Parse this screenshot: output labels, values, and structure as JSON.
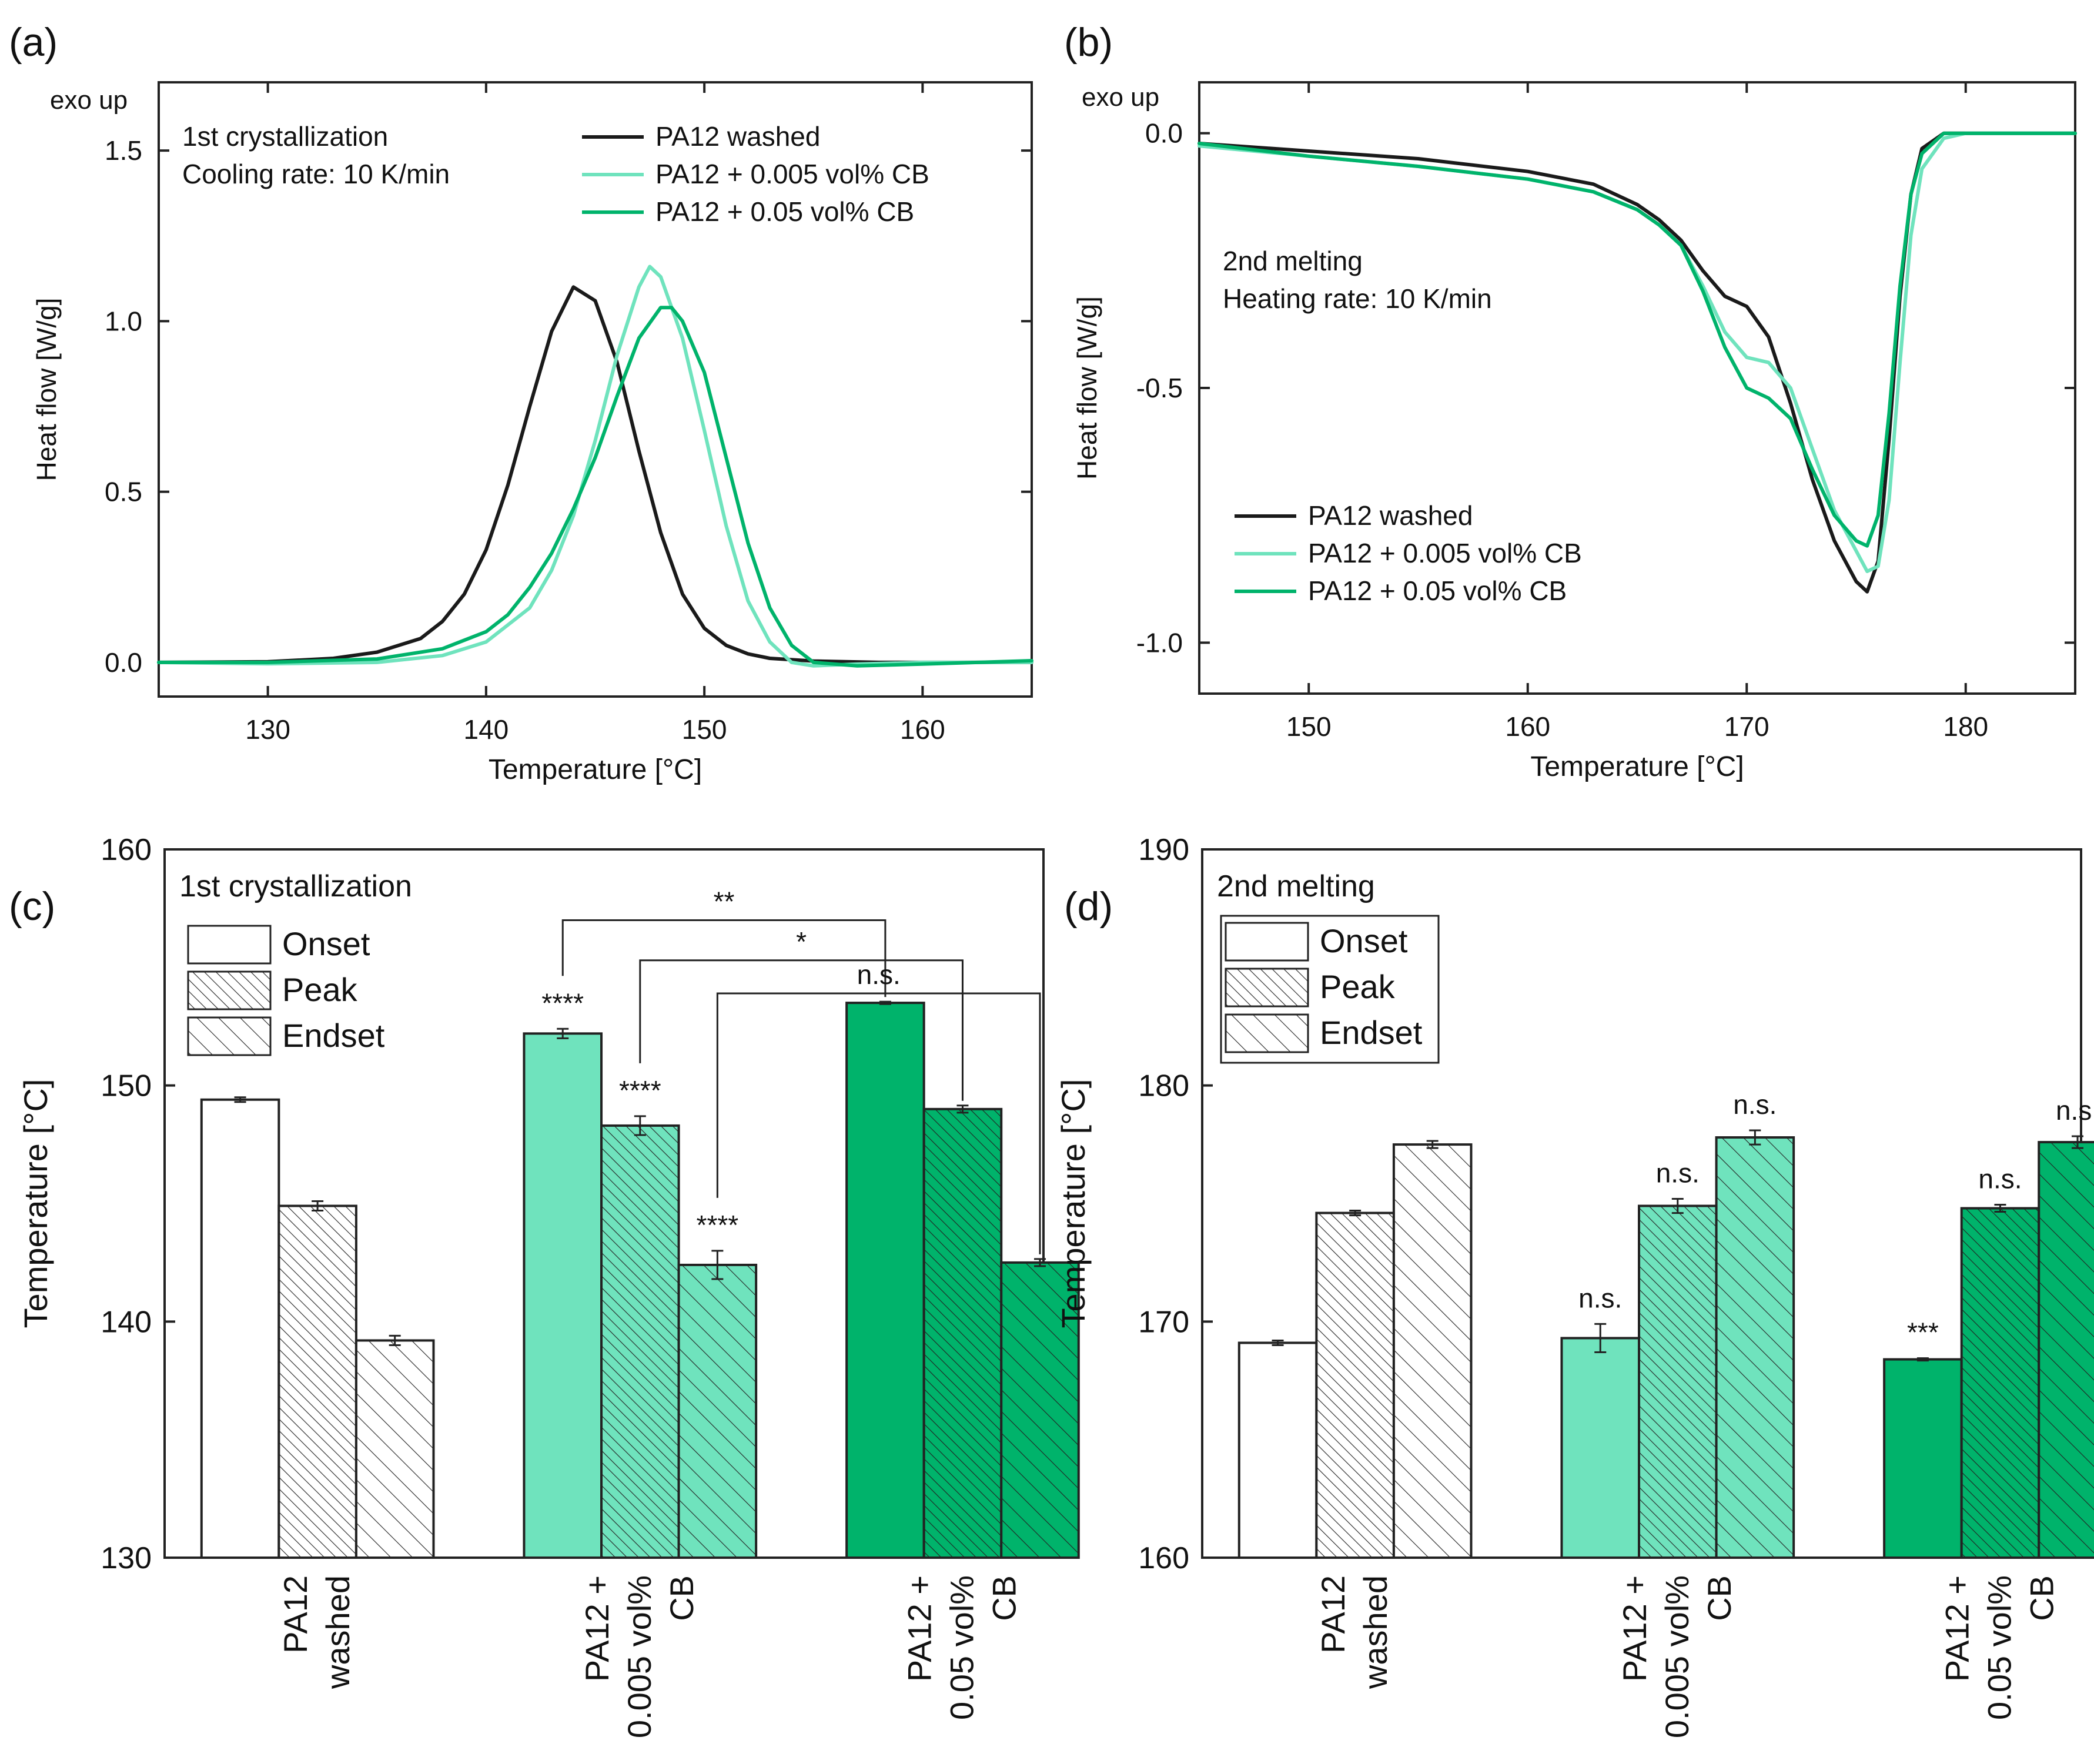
{
  "colors": {
    "washed": "#1a1a1a",
    "cb_low": "#6fe3bd",
    "cb_high": "#00b36b",
    "axis": "#222222",
    "bar_white": "#ffffff"
  },
  "chart_data": [
    {
      "id": "a",
      "type": "line",
      "panel_label": "(a)",
      "corner_label": "exo up",
      "annotation": [
        "1st crystallization",
        "Cooling rate: 10 K/min"
      ],
      "xlabel": "Temperature [°C]",
      "ylabel": "Heat flow [W/g]",
      "xlim": [
        125,
        165
      ],
      "ylim": [
        -0.1,
        1.7
      ],
      "xticks": [
        130,
        140,
        150,
        160
      ],
      "yticks": [
        0.0,
        0.5,
        1.0,
        1.5
      ],
      "ytick_labels": [
        "0.0",
        "0.5",
        "1.0",
        "1.5"
      ],
      "legend_position": "top-right",
      "series": [
        {
          "name": "PA12 washed",
          "color_key": "washed",
          "points": [
            [
              125,
              0.0
            ],
            [
              130,
              0.002
            ],
            [
              133,
              0.012
            ],
            [
              135,
              0.03
            ],
            [
              137,
              0.07
            ],
            [
              138,
              0.12
            ],
            [
              139,
              0.2
            ],
            [
              140,
              0.33
            ],
            [
              141,
              0.52
            ],
            [
              142,
              0.75
            ],
            [
              143,
              0.97
            ],
            [
              144,
              1.1
            ],
            [
              145,
              1.06
            ],
            [
              146,
              0.88
            ],
            [
              147,
              0.62
            ],
            [
              148,
              0.38
            ],
            [
              149,
              0.2
            ],
            [
              150,
              0.1
            ],
            [
              151,
              0.05
            ],
            [
              152,
              0.025
            ],
            [
              153,
              0.012
            ],
            [
              155,
              0.004
            ],
            [
              158,
              0.0
            ],
            [
              165,
              0.0
            ]
          ]
        },
        {
          "name": "PA12 + 0.005 vol% CB",
          "color_key": "cb_low",
          "points": [
            [
              125,
              0.0
            ],
            [
              130,
              -0.004
            ],
            [
              135,
              0.0
            ],
            [
              138,
              0.02
            ],
            [
              140,
              0.06
            ],
            [
              142,
              0.16
            ],
            [
              143,
              0.27
            ],
            [
              144,
              0.43
            ],
            [
              145,
              0.65
            ],
            [
              146,
              0.9
            ],
            [
              147,
              1.1
            ],
            [
              147.5,
              1.16
            ],
            [
              148,
              1.13
            ],
            [
              149,
              0.95
            ],
            [
              150,
              0.68
            ],
            [
              151,
              0.4
            ],
            [
              152,
              0.18
            ],
            [
              153,
              0.06
            ],
            [
              154,
              0.0
            ],
            [
              155,
              -0.01
            ],
            [
              157,
              -0.005
            ],
            [
              160,
              0.0
            ],
            [
              165,
              0.0
            ]
          ]
        },
        {
          "name": "PA12 + 0.05 vol% CB",
          "color_key": "cb_high",
          "points": [
            [
              125,
              0.0
            ],
            [
              130,
              0.0
            ],
            [
              135,
              0.01
            ],
            [
              138,
              0.04
            ],
            [
              140,
              0.09
            ],
            [
              141,
              0.14
            ],
            [
              142,
              0.22
            ],
            [
              143,
              0.32
            ],
            [
              144,
              0.45
            ],
            [
              145,
              0.6
            ],
            [
              146,
              0.78
            ],
            [
              147,
              0.95
            ],
            [
              148,
              1.04
            ],
            [
              148.5,
              1.04
            ],
            [
              149,
              1.0
            ],
            [
              150,
              0.85
            ],
            [
              151,
              0.6
            ],
            [
              152,
              0.35
            ],
            [
              153,
              0.16
            ],
            [
              154,
              0.05
            ],
            [
              155,
              0.0
            ],
            [
              157,
              -0.01
            ],
            [
              160,
              -0.005
            ],
            [
              165,
              0.005
            ]
          ]
        }
      ]
    },
    {
      "id": "b",
      "type": "line",
      "panel_label": "(b)",
      "corner_label": "exo up",
      "annotation": [
        "2nd melting",
        "Heating rate: 10 K/min"
      ],
      "xlabel": "Temperature [°C]",
      "ylabel": "Heat flow [W/g]",
      "xlim": [
        145,
        185
      ],
      "ylim": [
        -1.1,
        0.1
      ],
      "xticks": [
        150,
        160,
        170,
        180
      ],
      "yticks": [
        0.0,
        -0.5,
        -1.0
      ],
      "ytick_labels": [
        "0.0",
        "-0.5",
        "-1.0"
      ],
      "legend_position": "bottom-left",
      "series": [
        {
          "name": "PA12 washed",
          "color_key": "washed",
          "points": [
            [
              145,
              -0.02
            ],
            [
              150,
              -0.035
            ],
            [
              155,
              -0.05
            ],
            [
              160,
              -0.075
            ],
            [
              163,
              -0.1
            ],
            [
              165,
              -0.14
            ],
            [
              166,
              -0.17
            ],
            [
              167,
              -0.21
            ],
            [
              168,
              -0.27
            ],
            [
              169,
              -0.32
            ],
            [
              170,
              -0.34
            ],
            [
              171,
              -0.4
            ],
            [
              172,
              -0.53
            ],
            [
              173,
              -0.68
            ],
            [
              174,
              -0.8
            ],
            [
              175,
              -0.88
            ],
            [
              175.5,
              -0.9
            ],
            [
              176,
              -0.84
            ],
            [
              176.5,
              -0.6
            ],
            [
              177,
              -0.32
            ],
            [
              177.5,
              -0.12
            ],
            [
              178,
              -0.03
            ],
            [
              179,
              0.0
            ],
            [
              181,
              0.0
            ],
            [
              185,
              0.0
            ]
          ]
        },
        {
          "name": "PA12 + 0.005 vol% CB",
          "color_key": "cb_low",
          "points": [
            [
              145,
              -0.025
            ],
            [
              150,
              -0.045
            ],
            [
              155,
              -0.065
            ],
            [
              160,
              -0.09
            ],
            [
              163,
              -0.115
            ],
            [
              165,
              -0.15
            ],
            [
              166,
              -0.18
            ],
            [
              167,
              -0.22
            ],
            [
              168,
              -0.3
            ],
            [
              169,
              -0.39
            ],
            [
              170,
              -0.44
            ],
            [
              171,
              -0.45
            ],
            [
              172,
              -0.5
            ],
            [
              173,
              -0.62
            ],
            [
              174,
              -0.74
            ],
            [
              175,
              -0.82
            ],
            [
              175.5,
              -0.86
            ],
            [
              176,
              -0.85
            ],
            [
              176.5,
              -0.72
            ],
            [
              177,
              -0.45
            ],
            [
              177.5,
              -0.2
            ],
            [
              178,
              -0.07
            ],
            [
              179,
              -0.01
            ],
            [
              180,
              0.0
            ],
            [
              185,
              0.0
            ]
          ]
        },
        {
          "name": "PA12 + 0.05 vol% CB",
          "color_key": "cb_high",
          "points": [
            [
              145,
              -0.02
            ],
            [
              150,
              -0.045
            ],
            [
              155,
              -0.065
            ],
            [
              160,
              -0.09
            ],
            [
              163,
              -0.115
            ],
            [
              165,
              -0.15
            ],
            [
              166,
              -0.18
            ],
            [
              167,
              -0.22
            ],
            [
              168,
              -0.31
            ],
            [
              169,
              -0.42
            ],
            [
              170,
              -0.5
            ],
            [
              171,
              -0.52
            ],
            [
              172,
              -0.56
            ],
            [
              173,
              -0.66
            ],
            [
              174,
              -0.75
            ],
            [
              175,
              -0.8
            ],
            [
              175.5,
              -0.81
            ],
            [
              176,
              -0.75
            ],
            [
              176.5,
              -0.55
            ],
            [
              177,
              -0.3
            ],
            [
              177.5,
              -0.12
            ],
            [
              178,
              -0.04
            ],
            [
              179,
              0.0
            ],
            [
              181,
              0.0
            ],
            [
              185,
              0.0
            ]
          ]
        }
      ]
    },
    {
      "id": "c",
      "type": "bar",
      "panel_label": "(c)",
      "title": "1st crystallization",
      "ylabel": "Temperature [°C]",
      "ylim": [
        130,
        160
      ],
      "yticks": [
        130,
        140,
        150,
        160
      ],
      "legend": [
        "Onset",
        "Peak",
        "Endset"
      ],
      "legend_position": "top-left",
      "groups": [
        {
          "label": [
            "PA12",
            "washed"
          ],
          "color_key": "bar_white",
          "values": [
            149.4,
            144.9,
            139.2
          ],
          "errors": [
            0.1,
            0.2,
            0.2
          ],
          "marks": [
            "",
            "",
            ""
          ]
        },
        {
          "label": [
            "PA12 +",
            "0.005 vol%",
            "CB"
          ],
          "color_key": "cb_low",
          "values": [
            152.2,
            148.3,
            142.4
          ],
          "errors": [
            0.2,
            0.4,
            0.6
          ],
          "marks": [
            "****",
            "****",
            "****"
          ]
        },
        {
          "label": [
            "PA12 +",
            "0.05 vol%",
            "CB"
          ],
          "color_key": "cb_high",
          "values": [
            153.5,
            149.0,
            142.5
          ],
          "errors": [
            0.05,
            0.15,
            0.15
          ],
          "marks": [
            "",
            "",
            ""
          ]
        }
      ],
      "brackets": [
        {
          "from": [
            1,
            0
          ],
          "to": [
            2,
            0
          ],
          "y": 157.0,
          "label": "**"
        },
        {
          "from": [
            1,
            1
          ],
          "to": [
            2,
            1
          ],
          "y": 155.3,
          "label": "*"
        },
        {
          "from": [
            1,
            2
          ],
          "to": [
            2,
            2
          ],
          "y": 153.9,
          "label": "n.s."
        }
      ]
    },
    {
      "id": "d",
      "type": "bar",
      "panel_label": "(d)",
      "title": "2nd melting",
      "ylabel": "Temperature [°C]",
      "ylim": [
        160,
        190
      ],
      "yticks": [
        160,
        170,
        180,
        190
      ],
      "legend": [
        "Onset",
        "Peak",
        "Endset"
      ],
      "legend_position": "top-left",
      "groups": [
        {
          "label": [
            "PA12",
            "washed"
          ],
          "color_key": "bar_white",
          "values": [
            169.1,
            174.6,
            177.5
          ],
          "errors": [
            0.1,
            0.1,
            0.15
          ],
          "marks": [
            "",
            "",
            ""
          ]
        },
        {
          "label": [
            "PA12 +",
            "0.005 vol%",
            "CB"
          ],
          "color_key": "cb_low",
          "values": [
            169.3,
            174.9,
            177.8
          ],
          "errors": [
            0.6,
            0.3,
            0.3
          ],
          "marks": [
            "n.s.",
            "n.s.",
            "n.s."
          ]
        },
        {
          "label": [
            "PA12 +",
            "0.05 vol%",
            "CB"
          ],
          "color_key": "cb_high",
          "values": [
            168.4,
            174.8,
            177.6
          ],
          "errors": [
            0.05,
            0.15,
            0.25
          ],
          "marks": [
            "***",
            "n.s.",
            "n.s."
          ]
        }
      ],
      "brackets": []
    }
  ]
}
